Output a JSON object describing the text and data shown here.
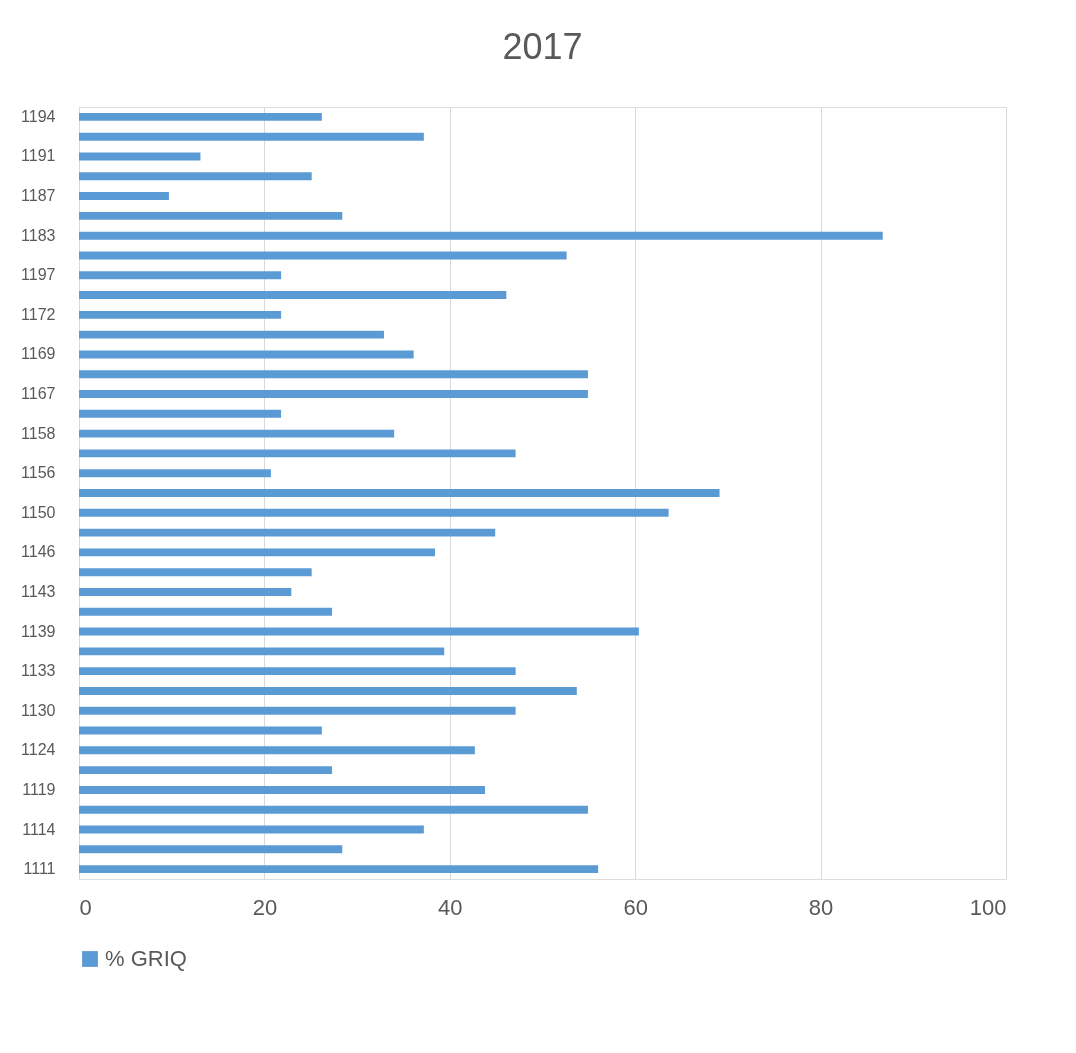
{
  "chart_data": {
    "type": "bar",
    "orientation": "horizontal",
    "title": "2017",
    "categories": [
      "1194",
      null,
      "1191",
      null,
      "1187",
      null,
      "1183",
      null,
      "1197",
      null,
      "1172",
      null,
      "1169",
      null,
      "1167",
      null,
      "1158",
      null,
      "1156",
      null,
      "1150",
      null,
      "1146",
      null,
      "1143",
      null,
      "1139",
      null,
      "1133",
      null,
      "1130",
      null,
      "1124",
      null,
      "1119",
      null,
      "1114",
      null,
      "1111"
    ],
    "series": [
      {
        "name": "% GRIQ",
        "color": "#5b9bd5",
        "values": [
          26.2,
          37.2,
          13.1,
          25.1,
          9.7,
          28.4,
          86.7,
          52.6,
          21.8,
          46.1,
          21.8,
          32.9,
          36.1,
          54.9,
          54.9,
          21.8,
          34.0,
          47.1,
          20.7,
          69.1,
          63.6,
          44.9,
          38.4,
          25.1,
          22.9,
          27.3,
          60.4,
          39.4,
          47.1,
          53.7,
          47.1,
          26.2,
          42.7,
          27.3,
          43.8,
          54.9,
          37.2,
          28.4,
          56.0
        ]
      }
    ],
    "xlim": [
      0,
      100
    ],
    "xticks": [
      0,
      20,
      40,
      60,
      80,
      100
    ],
    "grid": "x",
    "legend": "bottom"
  }
}
